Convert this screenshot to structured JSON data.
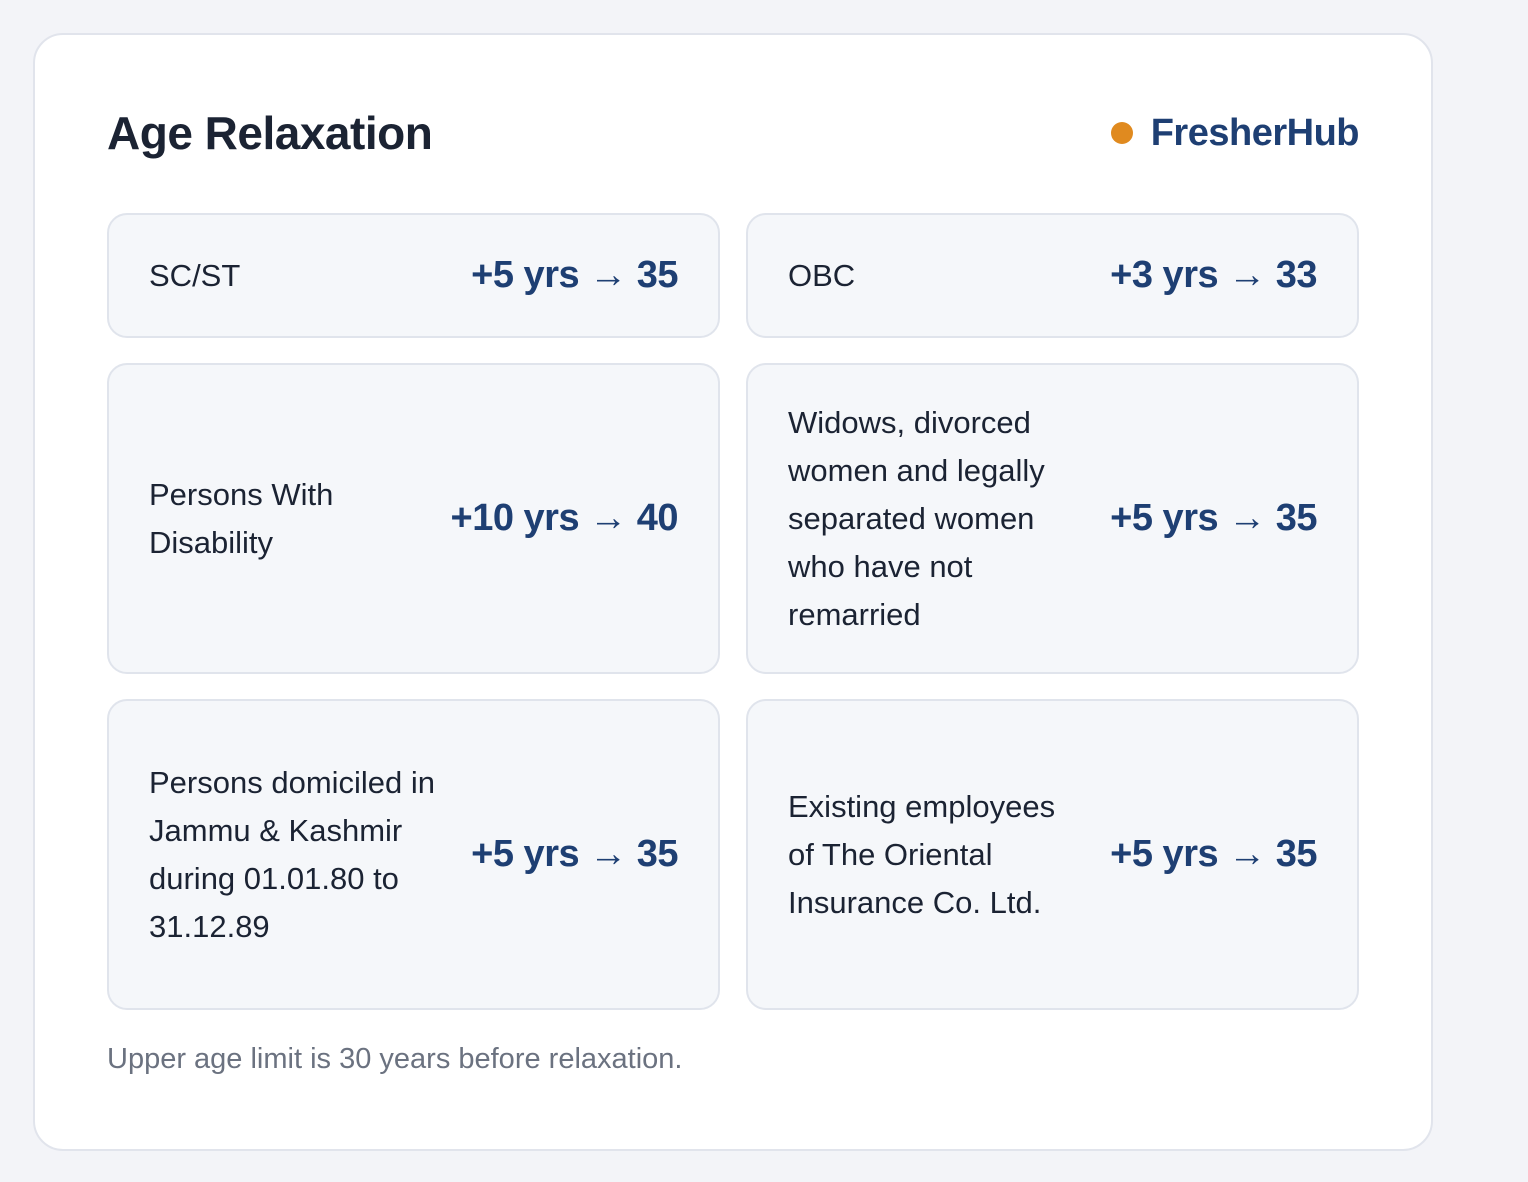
{
  "header": {
    "title": "Age Relaxation",
    "brand": "FresherHub"
  },
  "items": [
    {
      "category": "SC/ST",
      "relaxation": "+5 yrs → 35"
    },
    {
      "category": "OBC",
      "relaxation": "+3 yrs → 33"
    },
    {
      "category": "Persons With Disability",
      "relaxation": "+10 yrs → 40"
    },
    {
      "category": "Widows, divorced women and legally separated women who have not remarried",
      "relaxation": "+5 yrs → 35"
    },
    {
      "category": "Persons domiciled in Jammu & Kashmir during 01.01.80 to 31.12.89",
      "relaxation": "+5 yrs → 35"
    },
    {
      "category": "Existing employees of The Oriental Insurance Co. Ltd.",
      "relaxation": "+5 yrs → 35"
    }
  ],
  "footnote": "Upper age limit is 30 years before relaxation."
}
